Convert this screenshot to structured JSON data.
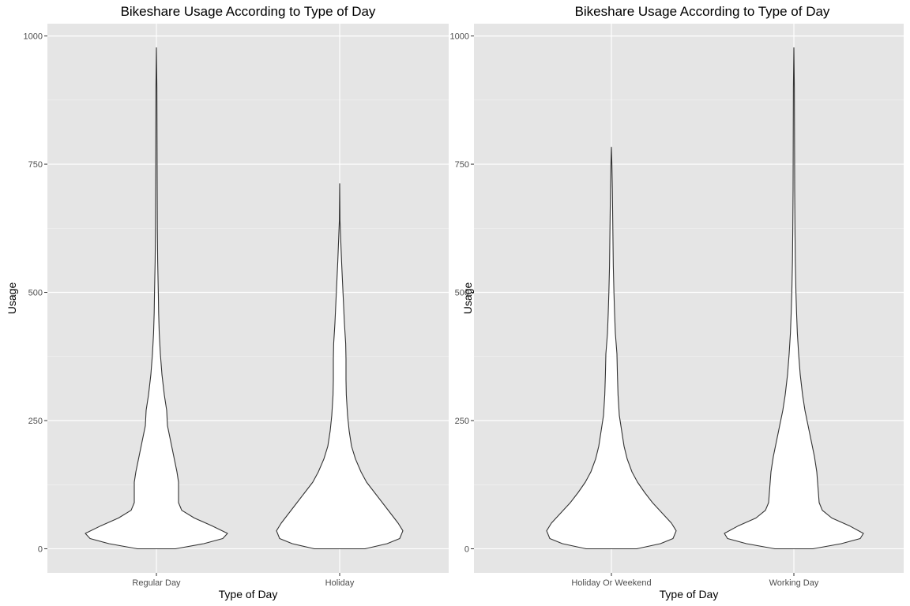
{
  "chart_data": [
    {
      "type": "violin",
      "title": "Bikeshare Usage According to Type of Day",
      "xlabel": "Type of Day",
      "ylabel": "Usage",
      "ylim": [
        -47,
        1024
      ],
      "yticks": [
        0,
        250,
        500,
        750,
        1000
      ],
      "grid": true,
      "categories": [
        "Regular Day",
        "Holiday"
      ],
      "violins": [
        {
          "category": "Regular Day",
          "max": 977,
          "profile": [
            [
              0,
              0.12
            ],
            [
              10,
              0.3
            ],
            [
              20,
              0.42
            ],
            [
              30,
              0.45
            ],
            [
              45,
              0.35
            ],
            [
              60,
              0.24
            ],
            [
              75,
              0.16
            ],
            [
              90,
              0.14
            ],
            [
              110,
              0.14
            ],
            [
              130,
              0.14
            ],
            [
              150,
              0.13
            ],
            [
              180,
              0.11
            ],
            [
              210,
              0.09
            ],
            [
              240,
              0.07
            ],
            [
              270,
              0.065
            ],
            [
              300,
              0.05
            ],
            [
              340,
              0.035
            ],
            [
              380,
              0.025
            ],
            [
              420,
              0.018
            ],
            [
              460,
              0.014
            ],
            [
              500,
              0.012
            ],
            [
              560,
              0.008
            ],
            [
              620,
              0.006
            ],
            [
              700,
              0.005
            ],
            [
              800,
              0.004
            ],
            [
              900,
              0.003
            ],
            [
              977,
              0.0
            ]
          ]
        },
        {
          "category": "Holiday",
          "max": 712,
          "profile": [
            [
              0,
              0.16
            ],
            [
              10,
              0.3
            ],
            [
              20,
              0.38
            ],
            [
              35,
              0.4
            ],
            [
              50,
              0.37
            ],
            [
              70,
              0.32
            ],
            [
              90,
              0.27
            ],
            [
              110,
              0.22
            ],
            [
              130,
              0.17
            ],
            [
              150,
              0.135
            ],
            [
              175,
              0.1
            ],
            [
              200,
              0.075
            ],
            [
              230,
              0.06
            ],
            [
              260,
              0.05
            ],
            [
              300,
              0.042
            ],
            [
              330,
              0.04
            ],
            [
              370,
              0.04
            ],
            [
              400,
              0.038
            ],
            [
              440,
              0.03
            ],
            [
              480,
              0.024
            ],
            [
              520,
              0.018
            ],
            [
              560,
              0.012
            ],
            [
              600,
              0.007
            ],
            [
              640,
              0.002
            ],
            [
              660,
              0.0015
            ],
            [
              712,
              0.0
            ]
          ]
        }
      ]
    },
    {
      "type": "violin",
      "title": "Bikeshare Usage According to Type of Day",
      "xlabel": "Type of Day",
      "ylabel": "Usage",
      "ylim": [
        -47,
        1024
      ],
      "yticks": [
        0,
        250,
        500,
        750,
        1000
      ],
      "grid": true,
      "categories": [
        "Holiday Or Weekend",
        "Working Day"
      ],
      "violins": [
        {
          "category": "Holiday Or Weekend",
          "max": 783,
          "profile": [
            [
              0,
              0.16
            ],
            [
              10,
              0.31
            ],
            [
              20,
              0.39
            ],
            [
              35,
              0.41
            ],
            [
              50,
              0.38
            ],
            [
              70,
              0.32
            ],
            [
              90,
              0.26
            ],
            [
              110,
              0.21
            ],
            [
              130,
              0.165
            ],
            [
              150,
              0.13
            ],
            [
              175,
              0.1
            ],
            [
              200,
              0.08
            ],
            [
              230,
              0.065
            ],
            [
              260,
              0.05
            ],
            [
              300,
              0.042
            ],
            [
              340,
              0.038
            ],
            [
              380,
              0.035
            ],
            [
              420,
              0.025
            ],
            [
              460,
              0.02
            ],
            [
              500,
              0.016
            ],
            [
              550,
              0.012
            ],
            [
              600,
              0.01
            ],
            [
              650,
              0.008
            ],
            [
              700,
              0.006
            ],
            [
              750,
              0.003
            ],
            [
              783,
              0.0
            ]
          ]
        },
        {
          "category": "Working Day",
          "max": 977,
          "profile": [
            [
              0,
              0.12
            ],
            [
              10,
              0.3
            ],
            [
              20,
              0.42
            ],
            [
              30,
              0.44
            ],
            [
              45,
              0.35
            ],
            [
              60,
              0.24
            ],
            [
              75,
              0.18
            ],
            [
              90,
              0.16
            ],
            [
              110,
              0.155
            ],
            [
              130,
              0.15
            ],
            [
              150,
              0.145
            ],
            [
              180,
              0.13
            ],
            [
              210,
              0.11
            ],
            [
              240,
              0.09
            ],
            [
              270,
              0.07
            ],
            [
              300,
              0.055
            ],
            [
              340,
              0.04
            ],
            [
              380,
              0.03
            ],
            [
              420,
              0.022
            ],
            [
              460,
              0.017
            ],
            [
              500,
              0.013
            ],
            [
              560,
              0.009
            ],
            [
              620,
              0.007
            ],
            [
              700,
              0.005
            ],
            [
              800,
              0.004
            ],
            [
              900,
              0.003
            ],
            [
              977,
              0.0
            ]
          ]
        }
      ]
    }
  ]
}
